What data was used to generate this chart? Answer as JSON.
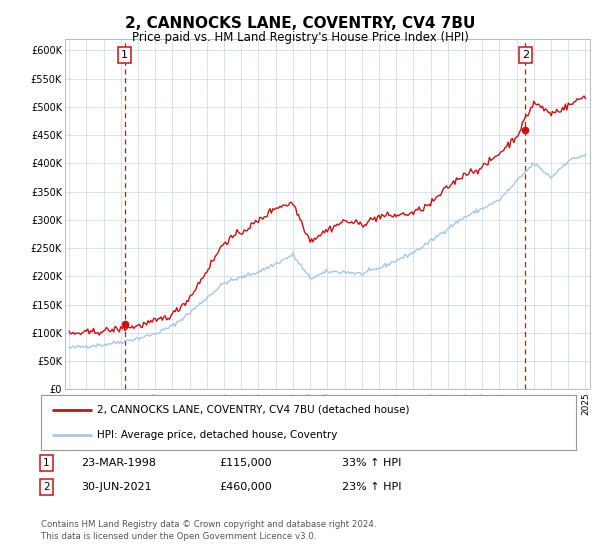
{
  "title": "2, CANNOCKS LANE, COVENTRY, CV4 7BU",
  "subtitle": "Price paid vs. HM Land Registry's House Price Index (HPI)",
  "title_fontsize": 11,
  "subtitle_fontsize": 8.5,
  "background_color": "#ffffff",
  "plot_bg_color": "#ffffff",
  "grid_color": "#d0dde8",
  "xlim": [
    1994.75,
    2025.25
  ],
  "ylim": [
    0,
    620000
  ],
  "yticks": [
    0,
    50000,
    100000,
    150000,
    200000,
    250000,
    300000,
    350000,
    400000,
    450000,
    500000,
    550000,
    600000
  ],
  "ytick_labels": [
    "£0",
    "£50K",
    "£100K",
    "£150K",
    "£200K",
    "£250K",
    "£300K",
    "£350K",
    "£400K",
    "£450K",
    "£500K",
    "£550K",
    "£600K"
  ],
  "xticks": [
    1995,
    1996,
    1997,
    1998,
    1999,
    2000,
    2001,
    2002,
    2003,
    2004,
    2005,
    2006,
    2007,
    2008,
    2009,
    2010,
    2011,
    2012,
    2013,
    2014,
    2015,
    2016,
    2017,
    2018,
    2019,
    2020,
    2021,
    2022,
    2023,
    2024,
    2025
  ],
  "hpi_color": "#a8c8e8",
  "price_color": "#cc1111",
  "marker_color": "#cc1111",
  "sale1_x": 1998.22,
  "sale1_y": 115000,
  "sale2_x": 2021.5,
  "sale2_y": 460000,
  "legend_label1": "2, CANNOCKS LANE, COVENTRY, CV4 7BU (detached house)",
  "legend_label2": "HPI: Average price, detached house, Coventry",
  "sale1_date": "23-MAR-1998",
  "sale1_price": "£115,000",
  "sale1_hpi": "33% ↑ HPI",
  "sale2_date": "30-JUN-2021",
  "sale2_price": "£460,000",
  "sale2_hpi": "23% ↑ HPI",
  "footer1": "Contains HM Land Registry data © Crown copyright and database right 2024.",
  "footer2": "This data is licensed under the Open Government Licence v3.0.",
  "hpi_anchors_x": [
    1995,
    1996,
    1997,
    1998,
    1999,
    2000,
    2001,
    2002,
    2003,
    2004,
    2005,
    2006,
    2007,
    2008,
    2009,
    2010,
    2011,
    2012,
    2013,
    2014,
    2015,
    2016,
    2017,
    2018,
    2019,
    2020,
    2021,
    2022,
    2023,
    2024,
    2025
  ],
  "hpi_anchors_y": [
    73000,
    76000,
    79000,
    84000,
    90000,
    98000,
    112000,
    135000,
    162000,
    188000,
    198000,
    208000,
    222000,
    238000,
    196000,
    208000,
    208000,
    204000,
    214000,
    228000,
    242000,
    262000,
    285000,
    305000,
    320000,
    335000,
    368000,
    400000,
    375000,
    405000,
    415000
  ],
  "price_anchors_x": [
    1995,
    1996,
    1997,
    1998,
    1999,
    2000,
    2001,
    2002,
    2003,
    2004,
    2005,
    2006,
    2007,
    2008,
    2009,
    2010,
    2011,
    2012,
    2013,
    2014,
    2015,
    2016,
    2017,
    2018,
    2019,
    2020,
    2021,
    2022,
    2023,
    2024,
    2025
  ],
  "price_anchors_y": [
    98000,
    100000,
    103000,
    107000,
    112000,
    120000,
    132000,
    162000,
    210000,
    260000,
    278000,
    298000,
    322000,
    330000,
    263000,
    282000,
    298000,
    292000,
    306000,
    308000,
    312000,
    328000,
    358000,
    382000,
    392000,
    418000,
    448000,
    508000,
    488000,
    502000,
    520000
  ]
}
